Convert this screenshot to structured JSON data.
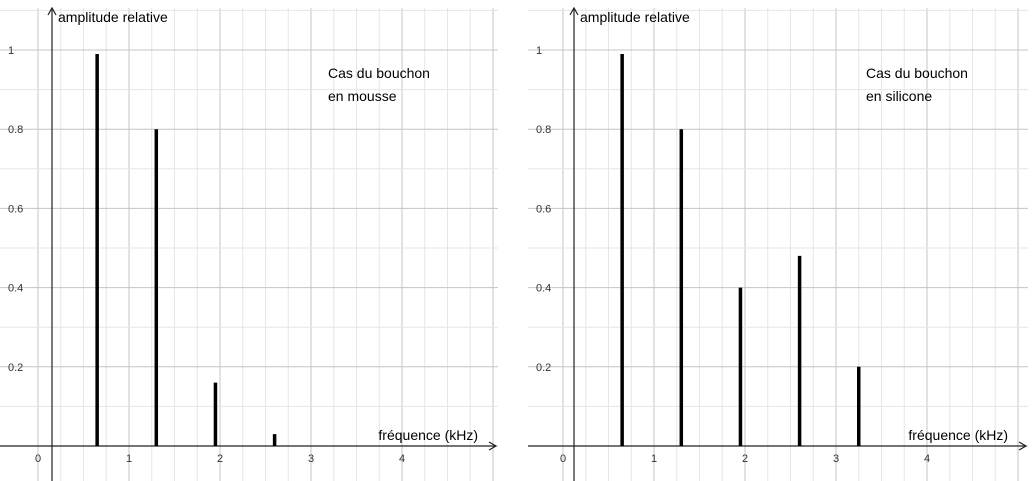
{
  "chart_data": [
    {
      "type": "bar",
      "ylabel": "amplitude relative",
      "xlabel": "fréquence (kHz)",
      "annotation": [
        "Cas du bouchon",
        "en mousse"
      ],
      "x": [
        0.65,
        1.3,
        1.95,
        2.6
      ],
      "values": [
        0.99,
        0.8,
        0.16,
        0.03
      ],
      "x_ticks": [
        "0",
        "1",
        "2",
        "3",
        "4"
      ],
      "y_ticks": [
        "0.2",
        "0.4",
        "0.6",
        "0.8",
        "1"
      ],
      "xlim": [
        0,
        5
      ],
      "ylim": [
        0,
        1
      ],
      "grid": true
    },
    {
      "type": "bar",
      "ylabel": "amplitude relative",
      "xlabel": "fréquence (kHz)",
      "annotation": [
        "Cas du bouchon",
        "en silicone"
      ],
      "x": [
        0.65,
        1.3,
        1.95,
        2.6,
        3.25
      ],
      "values": [
        0.99,
        0.8,
        0.4,
        0.48,
        0.2
      ],
      "x_ticks": [
        "0",
        "1",
        "2",
        "3",
        "4"
      ],
      "y_ticks": [
        "0.2",
        "0.4",
        "0.6",
        "0.8",
        "1"
      ],
      "xlim": [
        0,
        5
      ],
      "ylim": [
        0,
        1
      ],
      "grid": true
    }
  ]
}
